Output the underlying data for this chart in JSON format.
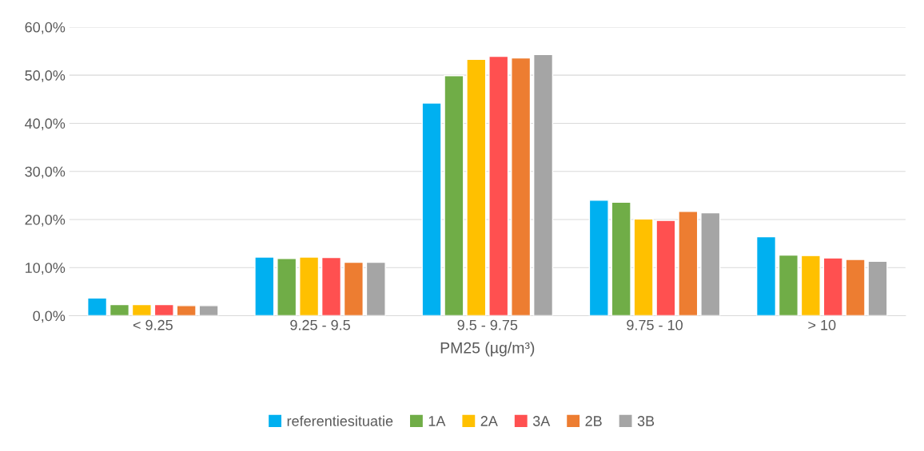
{
  "chart_data": {
    "type": "bar",
    "xlabel": "PM25 (µg/m³)",
    "categories": [
      "< 9.25",
      "9.25 - 9.5",
      "9.5 - 9.75",
      "9.75 - 10",
      "> 10"
    ],
    "series": [
      {
        "name": "referentiesituatie",
        "color": "#00b0f0",
        "values": [
          3.7,
          12.2,
          44.2,
          24.0,
          16.4
        ]
      },
      {
        "name": "1A",
        "color": "#70ad47",
        "values": [
          2.3,
          11.9,
          49.9,
          23.6,
          12.6
        ]
      },
      {
        "name": "2A",
        "color": "#ffc000",
        "values": [
          2.3,
          12.2,
          53.3,
          20.1,
          12.5
        ]
      },
      {
        "name": "3A",
        "color": "#ff5050",
        "values": [
          2.3,
          12.1,
          53.9,
          19.8,
          12.0
        ]
      },
      {
        "name": "2B",
        "color": "#ed7d31",
        "values": [
          2.1,
          11.1,
          53.6,
          21.7,
          11.7
        ]
      },
      {
        "name": "3B",
        "color": "#a5a5a5",
        "values": [
          2.1,
          11.1,
          54.3,
          21.4,
          11.3
        ]
      }
    ],
    "ylim": [
      0,
      60
    ],
    "yticks": [
      {
        "value": 0,
        "label": "0,0%"
      },
      {
        "value": 10,
        "label": "10,0%"
      },
      {
        "value": 20,
        "label": "20,0%"
      },
      {
        "value": 30,
        "label": "30,0%"
      },
      {
        "value": 40,
        "label": "40,0%"
      },
      {
        "value": 50,
        "label": "50,0%"
      },
      {
        "value": 60,
        "label": "60,0%"
      }
    ],
    "grid": "y",
    "legend": "bottom"
  }
}
